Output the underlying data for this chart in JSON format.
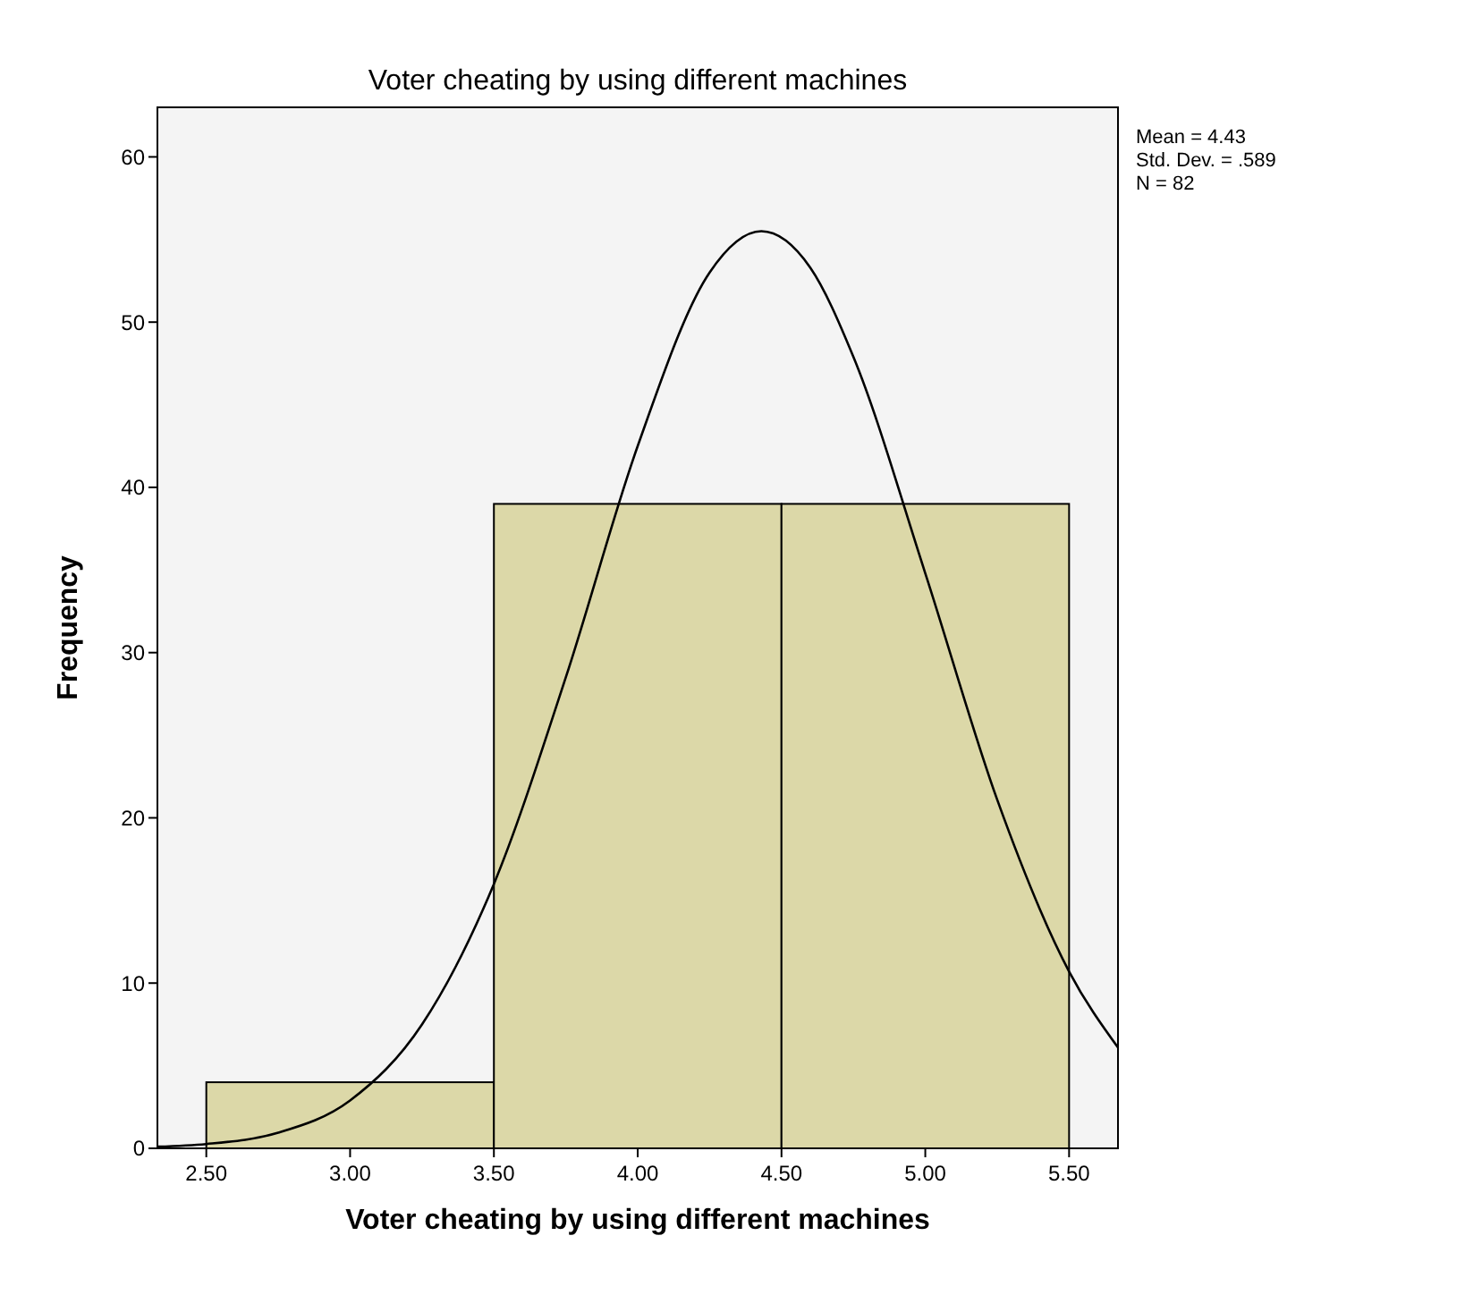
{
  "chart_data": {
    "type": "histogram",
    "title": "Voter cheating by using different machines",
    "xlabel": "Voter cheating by using different machines",
    "ylabel": "Frequency",
    "bins": [
      2.5,
      3.5,
      4.5,
      5.5
    ],
    "values": [
      4,
      39,
      39
    ],
    "color": "#dcd8a8",
    "series": [
      {
        "type": "line",
        "color": "#000000",
        "x": [
          2.33,
          2.5,
          2.75,
          3.0,
          3.25,
          3.5,
          3.75,
          4.0,
          4.25,
          4.43,
          4.6,
          4.75,
          5.0,
          5.25,
          5.5,
          5.67
        ],
        "values": [
          0.1,
          0.26,
          0.95,
          2.9,
          7.5,
          16.0,
          28.5,
          42.5,
          53.0,
          55.5,
          53.3,
          47.9,
          34.8,
          21.1,
          10.7,
          6.1
        ]
      }
    ],
    "xlim": [
      2.33,
      5.67
    ],
    "ylim": [
      0,
      63
    ],
    "xticks": [
      {
        "value": 2.5,
        "label": "2.50"
      },
      {
        "value": 3,
        "label": "3.00"
      },
      {
        "value": 3.5,
        "label": "3.50"
      },
      {
        "value": 4,
        "label": "4.00"
      },
      {
        "value": 4.5,
        "label": "4.50"
      },
      {
        "value": 5,
        "label": "5.00"
      },
      {
        "value": 5.5,
        "label": "5.50"
      }
    ],
    "yticks": [
      0,
      10,
      20,
      30,
      40,
      50,
      60
    ],
    "annotations": [
      "Mean = 4.43",
      "Std. Dev. = .589",
      "N = 82"
    ]
  }
}
